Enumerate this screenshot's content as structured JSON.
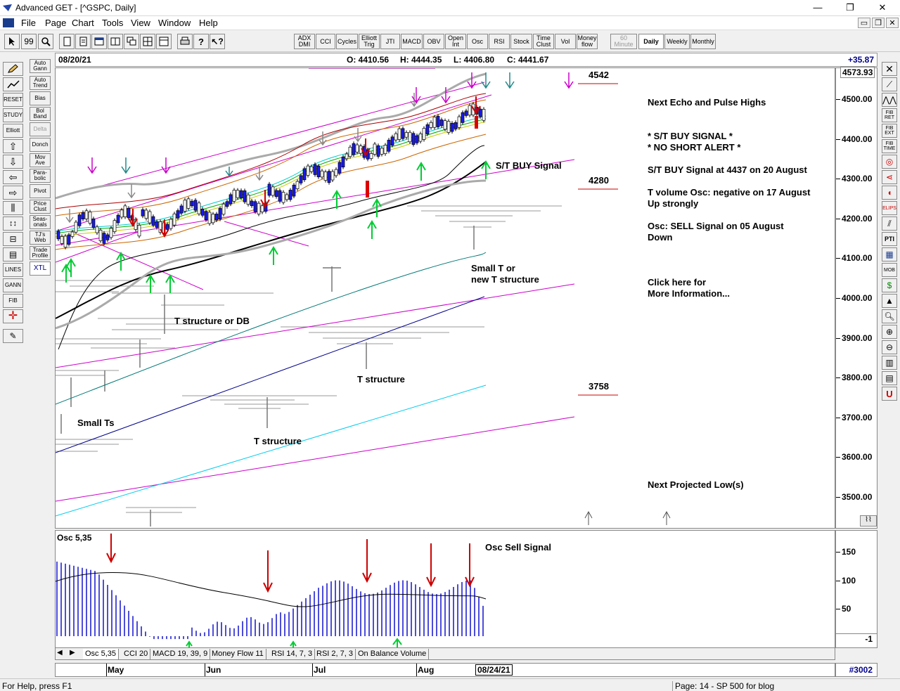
{
  "window": {
    "title": "Advanced GET - [^GSPC, Daily]",
    "min_glyph": "—",
    "max_glyph": "❐",
    "close_glyph": "✕"
  },
  "menu": {
    "items": [
      "File",
      "Page",
      "Chart",
      "Tools",
      "View",
      "Window",
      "Help"
    ],
    "mdi_min": "▭",
    "mdi_restore": "❐",
    "mdi_close": "✕"
  },
  "toolbar": {
    "indicators": [
      {
        "label": "ADX DMI"
      },
      {
        "label": "CCI"
      },
      {
        "label": "Cycles"
      },
      {
        "label": "Elliott Trig"
      },
      {
        "label": "JTI"
      },
      {
        "label": "MACD"
      },
      {
        "label": "OBV"
      },
      {
        "label": "Open Int"
      },
      {
        "label": "Osc"
      },
      {
        "label": "RSI"
      },
      {
        "label": "Stock"
      },
      {
        "label": "Time Clust"
      },
      {
        "label": "Vol"
      },
      {
        "label": "Money flow"
      }
    ],
    "periods": [
      {
        "label": "60 Minute",
        "state": "disabled"
      },
      {
        "label": "Daily",
        "state": "active"
      },
      {
        "label": "Weekly",
        "state": "normal"
      },
      {
        "label": "Monthly",
        "state": "normal"
      }
    ]
  },
  "left_tools": {
    "col2": [
      "Auto Gann",
      "Auto Trend",
      "Bias",
      "Bol Band",
      "Delta",
      "Donch",
      "Mov Ave",
      "Para-bolic",
      "Pivot",
      "Price Clust",
      "Seas-onals",
      "TJ's Web",
      "Trade Profile",
      "XTL"
    ],
    "col1": [
      "RESET",
      "STUDY",
      "Elliott",
      "LINES",
      "GANN",
      "FIB"
    ]
  },
  "right_tools": [
    "FIB RET",
    "FIB EXT",
    "FIB TIME",
    "ELIPS",
    "PTI",
    "MOB"
  ],
  "header": {
    "date": "08/20/21",
    "open": "O: 4410.56",
    "high": "H: 4444.35",
    "low": "L: 4406.80",
    "close": "C: 4441.67",
    "change": "+35.87"
  },
  "price_axis": {
    "top_value": "4573.93",
    "labels": [
      "4500.00",
      "4400.00",
      "4300.00",
      "4200.00",
      "4100.00",
      "4000.00",
      "3900.00",
      "3800.00",
      "3700.00",
      "3600.00",
      "3500.00"
    ]
  },
  "osc_axis": {
    "labels": [
      "150",
      "100",
      "50"
    ],
    "current": "-1"
  },
  "annotations": {
    "target_high": "4542",
    "target_mid": "4280",
    "target_low": "3758",
    "st_buy_signal": "S/T BUY Signal",
    "small_t_1": "Small T or",
    "small_t_2": "new T structure",
    "t_db": "T structure or DB",
    "t_structure_1": "T structure",
    "t_structure_2": "T structure",
    "small_ts": "Small Ts",
    "osc_label": "Osc 5,35",
    "osc_sell": "Osc Sell Signal"
  },
  "info_panel": {
    "echo": "Next Echo and Pulse Highs",
    "buy_signal": "* S/T BUY SIGNAL *",
    "no_short": "* NO SHORT ALERT *",
    "buy_at": "S/T BUY Signal at 4437 on 20 August",
    "tvol_1": "T volume Osc: negative on 17 August",
    "tvol_2": "Up strongly",
    "osc_1": "Osc: SELL Signal on 05 August",
    "osc_2": "Down",
    "click_1": "Click here for",
    "click_2": "More Information...",
    "projected_low": "Next Projected Low(s)"
  },
  "osc_tabs": [
    "Osc 5,35",
    "CCI 20",
    "MACD 19, 39, 9",
    "Money Flow 11",
    "RSI 14, 7, 3",
    "RSI 2, 7, 3",
    "On Balance Volume"
  ],
  "date_axis": {
    "months": [
      "May",
      "Jun",
      "Jul",
      "Aug"
    ],
    "cursor_date": "08/24/21"
  },
  "bar_count": "#3002",
  "status": {
    "help": "For Help, press F1",
    "page": "Page: 14 - SP 500 for blog"
  },
  "colors": {
    "buy_arrow": "#00cc33",
    "sell_arrow": "#cc0000",
    "channel": "#cc00cc",
    "band": "#aaaaaa",
    "osc_bar": "#0000cc"
  }
}
